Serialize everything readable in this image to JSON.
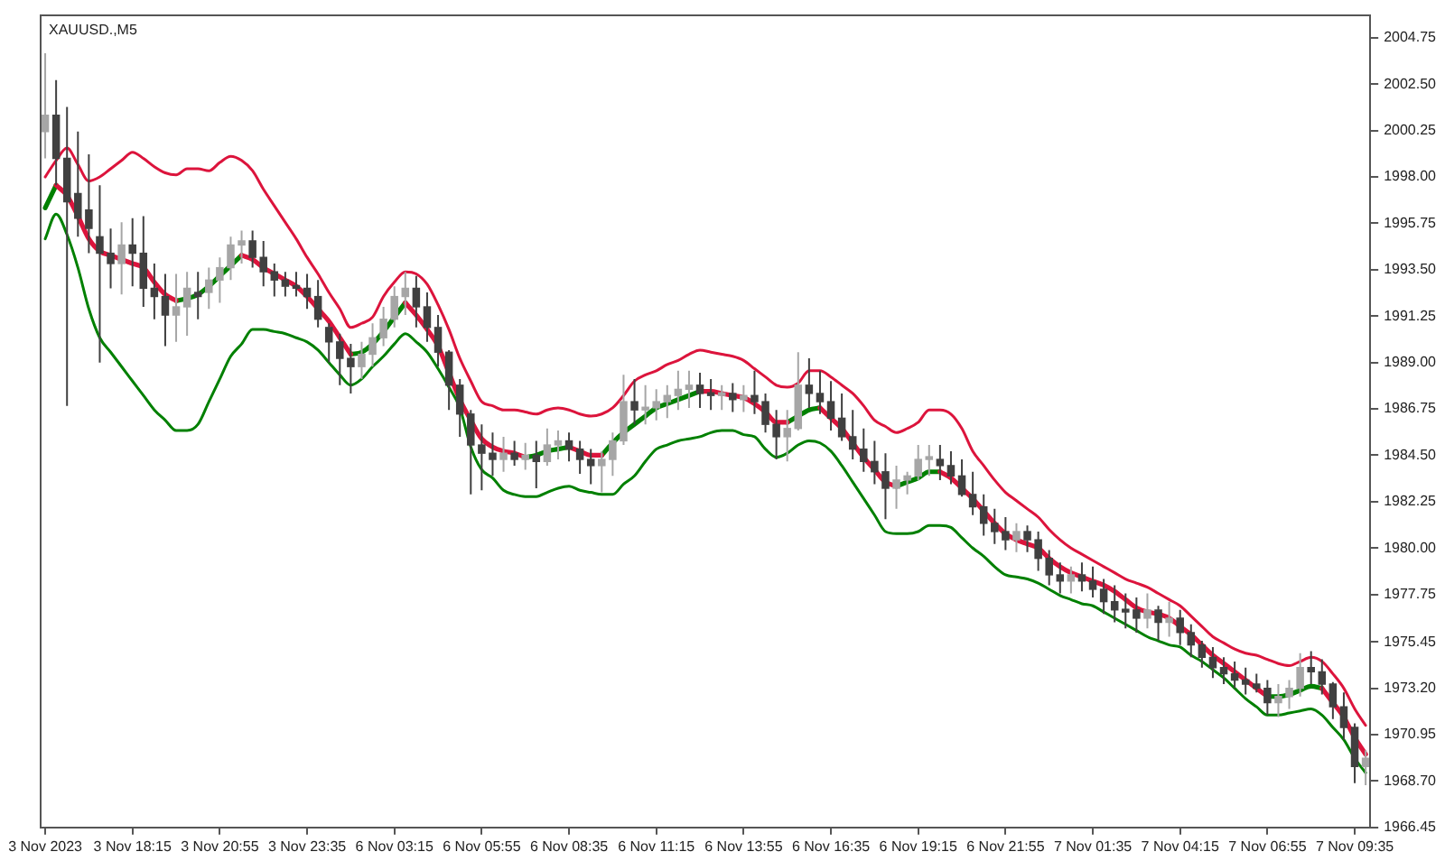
{
  "chart_data": {
    "type": "candlestick",
    "title": "XAUUSD.,M5",
    "marker": "none",
    "categories": [
      "3 Nov 2023",
      null,
      null,
      null,
      null,
      null,
      null,
      null,
      "3 Nov 18:15",
      null,
      null,
      null,
      null,
      null,
      null,
      null,
      "3 Nov 20:55",
      null,
      null,
      null,
      null,
      null,
      null,
      null,
      "3 Nov 23:35",
      null,
      null,
      null,
      null,
      null,
      null,
      null,
      "6 Nov 03:15",
      null,
      null,
      null,
      null,
      null,
      null,
      null,
      "6 Nov 05:55",
      null,
      null,
      null,
      null,
      null,
      null,
      null,
      "6 Nov 08:35",
      null,
      null,
      null,
      null,
      null,
      null,
      null,
      "6 Nov 11:15",
      null,
      null,
      null,
      null,
      null,
      null,
      null,
      "6 Nov 13:55",
      null,
      null,
      null,
      null,
      null,
      null,
      null,
      "6 Nov 16:35",
      null,
      null,
      null,
      null,
      null,
      null,
      null,
      "6 Nov 19:15",
      null,
      null,
      null,
      null,
      null,
      null,
      null,
      "6 Nov 21:55",
      null,
      null,
      null,
      null,
      null,
      null,
      null,
      "7 Nov 01:35",
      null,
      null,
      null,
      null,
      null,
      null,
      null,
      "7 Nov 04:15",
      null,
      null,
      null,
      null,
      null,
      null,
      null,
      "7 Nov 06:55",
      null,
      null,
      null,
      null,
      null,
      null,
      null,
      "7 Nov 09:35",
      null
    ],
    "ylim": [
      1966.45,
      2005.9
    ],
    "yticks": [
      2004.75,
      {
        "value": 2002.5,
        "label": "2002.50"
      },
      2000.25,
      {
        "value": 1998,
        "label": "1998.00"
      },
      1995.75,
      {
        "value": 1993.5,
        "label": "1993.50"
      },
      1991.25,
      {
        "value": 1989,
        "label": "1989.00"
      },
      1986.75,
      {
        "value": 1984.5,
        "label": "1984.50"
      },
      1982.25,
      {
        "value": 1980,
        "label": "1980.00"
      },
      1977.75,
      1975.45,
      {
        "value": 1973.2,
        "label": "1973.20"
      },
      1970.95,
      {
        "value": 1968.7,
        "label": "1968.70"
      },
      1966.45
    ],
    "series": [
      {
        "type": "candlestick",
        "colors": [
          "#a6a6a6",
          "#404040",
          "#404040",
          "#404040",
          "#404040",
          "#404040",
          "#404040",
          "#a6a6a6",
          "#404040",
          "#404040",
          "#404040",
          "#404040",
          "#a6a6a6",
          "#a6a6a6",
          "#404040",
          "#a6a6a6",
          "#a6a6a6",
          "#a6a6a6",
          "#a6a6a6",
          "#404040",
          "#404040",
          "#404040",
          "#404040",
          "#404040",
          "#404040",
          "#404040",
          "#404040",
          "#404040",
          "#404040",
          "#a6a6a6",
          "#a6a6a6",
          "#a6a6a6",
          "#a6a6a6",
          "#a6a6a6",
          "#404040",
          "#404040",
          "#404040",
          "#404040",
          "#404040",
          "#404040",
          "#404040",
          "#404040",
          "#a6a6a6",
          "#404040",
          "#a6a6a6",
          "#404040",
          "#a6a6a6",
          "#a6a6a6",
          "#404040",
          "#404040",
          "#404040",
          "#a6a6a6",
          "#a6a6a6",
          "#a6a6a6",
          "#404040",
          "#a6a6a6",
          "#a6a6a6",
          "#a6a6a6",
          "#a6a6a6",
          "#a6a6a6",
          "#404040",
          "#404040",
          "#a6a6a6",
          "#404040",
          "#a6a6a6",
          "#404040",
          "#404040",
          "#404040",
          "#a6a6a6",
          "#a6a6a6",
          "#404040",
          "#404040",
          "#404040",
          "#404040",
          "#404040",
          "#404040",
          "#404040",
          "#404040",
          "#a6a6a6",
          "#a6a6a6",
          "#a6a6a6",
          "#a6a6a6",
          "#404040",
          "#404040",
          "#404040",
          "#404040",
          "#404040",
          "#404040",
          "#404040",
          "#a6a6a6",
          "#404040",
          "#404040",
          "#404040",
          "#404040",
          "#a6a6a6",
          "#404040",
          "#404040",
          "#404040",
          "#404040",
          "#404040",
          "#404040",
          "#a6a6a6",
          "#404040",
          "#a6a6a6",
          "#404040",
          "#404040",
          "#404040",
          "#404040",
          "#404040",
          "#404040",
          "#404040",
          "#404040",
          "#404040",
          "#a6a6a6",
          "#a6a6a6",
          "#a6a6a6",
          "#404040",
          "#404040",
          "#404040",
          "#404040",
          "#404040",
          "#a6a6a6"
        ],
        "ohlc": [
          [
            2000.2,
            2004.0,
            1998.9,
            2001.0
          ],
          [
            2001.0,
            2002.7,
            1997.6,
            1998.9
          ],
          [
            1998.9,
            2001.4,
            1986.9,
            1996.8
          ],
          [
            1997.2,
            2000.2,
            1995.1,
            1996.0
          ],
          [
            1996.4,
            1999.1,
            1994.3,
            1995.5
          ],
          [
            1995.1,
            1997.6,
            1989.0,
            1994.3
          ],
          [
            1994.3,
            1995.5,
            1992.6,
            1993.8
          ],
          [
            1993.8,
            1995.8,
            1992.3,
            1994.7
          ],
          [
            1994.7,
            1996.0,
            1992.7,
            1994.3
          ],
          [
            1994.3,
            1996.1,
            1991.7,
            1992.6
          ],
          [
            1992.6,
            1993.8,
            1991.1,
            1992.2
          ],
          [
            1992.2,
            1993.3,
            1989.8,
            1991.3
          ],
          [
            1991.3,
            1993.3,
            1990.0,
            1991.7
          ],
          [
            1991.7,
            1993.4,
            1990.3,
            1992.6
          ],
          [
            1992.4,
            1993.4,
            1991.1,
            1992.2
          ],
          [
            1992.4,
            1993.6,
            1991.6,
            1993.0
          ],
          [
            1993.0,
            1994.1,
            1991.9,
            1993.6
          ],
          [
            1993.6,
            1995.1,
            1993.0,
            1994.7
          ],
          [
            1994.7,
            1995.4,
            1993.8,
            1994.9
          ],
          [
            1994.9,
            1995.4,
            1993.6,
            1994.1
          ],
          [
            1994.1,
            1994.9,
            1992.7,
            1993.4
          ],
          [
            1993.4,
            1993.8,
            1992.2,
            1993.0
          ],
          [
            1993.0,
            1993.4,
            1992.2,
            1992.7
          ],
          [
            1992.7,
            1993.4,
            1992.2,
            1992.6
          ],
          [
            1992.6,
            1993.3,
            1991.6,
            1992.2
          ],
          [
            1992.2,
            1993.0,
            1990.7,
            1991.1
          ],
          [
            1990.7,
            1990.9,
            1989.0,
            1990.0
          ],
          [
            1990.0,
            1990.4,
            1987.9,
            1989.2
          ],
          [
            1989.2,
            1989.9,
            1987.5,
            1988.8
          ],
          [
            1988.8,
            1990.0,
            1988.2,
            1989.4
          ],
          [
            1989.4,
            1990.9,
            1988.8,
            1990.2
          ],
          [
            1990.2,
            1991.7,
            1989.8,
            1991.1
          ],
          [
            1991.1,
            1992.7,
            1990.7,
            1992.2
          ],
          [
            1992.2,
            1993.4,
            1991.3,
            1992.6
          ],
          [
            1992.6,
            1993.2,
            1990.7,
            1991.7
          ],
          [
            1991.7,
            1992.4,
            1990.0,
            1990.7
          ],
          [
            1990.7,
            1991.3,
            1988.8,
            1989.5
          ],
          [
            1989.5,
            1989.6,
            1986.7,
            1987.9
          ],
          [
            1987.9,
            1988.2,
            1985.4,
            1986.5
          ],
          [
            1986.5,
            1986.7,
            1982.6,
            1985.0
          ],
          [
            1985.0,
            1986.0,
            1982.8,
            1984.6
          ],
          [
            1984.6,
            1985.6,
            1983.5,
            1984.3
          ],
          [
            1984.3,
            1985.4,
            1983.7,
            1984.6
          ],
          [
            1984.6,
            1985.2,
            1984.0,
            1984.3
          ],
          [
            1984.3,
            1985.1,
            1983.8,
            1984.5
          ],
          [
            1984.5,
            1985.2,
            1982.9,
            1984.2
          ],
          [
            1984.2,
            1985.8,
            1984.0,
            1985.0
          ],
          [
            1985.0,
            1985.7,
            1984.3,
            1985.2
          ],
          [
            1985.2,
            1985.6,
            1984.2,
            1984.8
          ],
          [
            1984.8,
            1985.2,
            1983.6,
            1984.3
          ],
          [
            1984.3,
            1984.8,
            1983.1,
            1984.0
          ],
          [
            1984.0,
            1984.7,
            1982.7,
            1984.3
          ],
          [
            1984.3,
            1985.6,
            1983.5,
            1985.2
          ],
          [
            1985.2,
            1988.4,
            1985.0,
            1987.1
          ],
          [
            1987.1,
            1988.2,
            1986.0,
            1986.7
          ],
          [
            1986.7,
            1987.9,
            1986.0,
            1986.8
          ],
          [
            1986.8,
            1987.7,
            1986.2,
            1987.1
          ],
          [
            1987.1,
            1987.9,
            1986.3,
            1987.4
          ],
          [
            1987.4,
            1988.6,
            1986.7,
            1987.7
          ],
          [
            1987.7,
            1988.6,
            1986.8,
            1987.9
          ],
          [
            1987.9,
            1988.5,
            1986.8,
            1987.5
          ],
          [
            1987.5,
            1988.2,
            1986.7,
            1987.4
          ],
          [
            1987.4,
            1987.9,
            1986.7,
            1987.5
          ],
          [
            1987.5,
            1988.0,
            1986.6,
            1987.2
          ],
          [
            1987.2,
            1987.9,
            1986.6,
            1987.4
          ],
          [
            1987.4,
            1988.6,
            1986.5,
            1987.1
          ],
          [
            1987.1,
            1987.5,
            1985.6,
            1986.0
          ],
          [
            1986.0,
            1986.7,
            1984.3,
            1985.4
          ],
          [
            1985.4,
            1986.7,
            1984.2,
            1985.8
          ],
          [
            1985.8,
            1989.5,
            1985.7,
            1987.9
          ],
          [
            1987.9,
            1989.2,
            1986.8,
            1987.5
          ],
          [
            1987.5,
            1988.6,
            1986.5,
            1987.1
          ],
          [
            1987.1,
            1988.1,
            1985.7,
            1986.3
          ],
          [
            1986.3,
            1987.5,
            1985.2,
            1985.4
          ],
          [
            1985.4,
            1986.7,
            1984.3,
            1984.8
          ],
          [
            1984.8,
            1985.8,
            1983.7,
            1984.2
          ],
          [
            1984.2,
            1985.2,
            1983.1,
            1983.7
          ],
          [
            1983.7,
            1984.6,
            1981.4,
            1982.9
          ],
          [
            1982.9,
            1984.0,
            1981.9,
            1983.3
          ],
          [
            1983.3,
            1983.7,
            1982.6,
            1983.5
          ],
          [
            1983.5,
            1985.0,
            1983.3,
            1984.3
          ],
          [
            1984.3,
            1985.0,
            1983.5,
            1984.4
          ],
          [
            1984.3,
            1985.0,
            1983.3,
            1984.0
          ],
          [
            1984.0,
            1984.7,
            1983.1,
            1983.5
          ],
          [
            1983.5,
            1984.3,
            1982.5,
            1982.6
          ],
          [
            1982.6,
            1983.7,
            1981.6,
            1982.0
          ],
          [
            1982.0,
            1982.6,
            1980.6,
            1981.2
          ],
          [
            1981.2,
            1981.9,
            1980.2,
            1980.8
          ],
          [
            1980.8,
            1981.5,
            1979.9,
            1980.4
          ],
          [
            1980.4,
            1981.2,
            1979.8,
            1980.8
          ],
          [
            1980.8,
            1981.1,
            1979.8,
            1980.4
          ],
          [
            1980.4,
            1980.8,
            1978.9,
            1979.5
          ],
          [
            1979.5,
            1979.9,
            1978.2,
            1978.7
          ],
          [
            1978.7,
            1979.3,
            1977.8,
            1978.4
          ],
          [
            1978.4,
            1979.1,
            1977.8,
            1978.7
          ],
          [
            1978.7,
            1979.3,
            1977.9,
            1978.4
          ],
          [
            1978.4,
            1979.1,
            1977.6,
            1978.0
          ],
          [
            1978.0,
            1978.5,
            1976.8,
            1977.4
          ],
          [
            1977.4,
            1978.2,
            1976.4,
            1977.0
          ],
          [
            1977.0,
            1977.8,
            1976.1,
            1976.9
          ],
          [
            1977.0,
            1977.6,
            1975.9,
            1976.6
          ],
          [
            1976.6,
            1977.8,
            1976.1,
            1977.0
          ],
          [
            1977.0,
            1977.2,
            1975.5,
            1976.4
          ],
          [
            1976.4,
            1977.4,
            1975.7,
            1976.6
          ],
          [
            1976.6,
            1977.0,
            1975.3,
            1975.9
          ],
          [
            1975.9,
            1976.3,
            1974.7,
            1975.3
          ],
          [
            1975.3,
            1975.5,
            1974.2,
            1974.7
          ],
          [
            1974.7,
            1975.2,
            1973.7,
            1974.2
          ],
          [
            1974.2,
            1974.7,
            1973.4,
            1973.9
          ],
          [
            1973.9,
            1974.5,
            1973.2,
            1973.6
          ],
          [
            1973.6,
            1974.2,
            1972.9,
            1973.4
          ],
          [
            1973.4,
            1973.9,
            1973.0,
            1973.2
          ],
          [
            1973.2,
            1973.6,
            1971.9,
            1972.5
          ],
          [
            1972.5,
            1973.4,
            1971.8,
            1972.8
          ],
          [
            1972.8,
            1973.6,
            1972.2,
            1973.2
          ],
          [
            1973.2,
            1974.9,
            1972.8,
            1974.2
          ],
          [
            1974.2,
            1975.0,
            1973.4,
            1974.0
          ],
          [
            1974.0,
            1974.6,
            1972.9,
            1973.4
          ],
          [
            1973.4,
            1973.5,
            1971.7,
            1972.3
          ],
          [
            1972.3,
            1973.0,
            1970.7,
            1971.3
          ],
          [
            1971.3,
            1971.5,
            1968.6,
            1969.4
          ],
          [
            1969.4,
            1970.2,
            1968.5,
            1969.8
          ]
        ]
      },
      {
        "type": "line",
        "color": "#dc143c",
        "values": [
          1998.0,
          1998.8,
          1999.4,
          1998.6,
          1997.8,
          1998.0,
          1998.4,
          1998.8,
          1999.2,
          1998.9,
          1998.5,
          1998.2,
          1998.1,
          1998.4,
          1998.4,
          1998.3,
          1998.7,
          1999.0,
          1998.8,
          1998.3,
          1997.4,
          1996.6,
          1995.8,
          1995.0,
          1994.1,
          1993.3,
          1992.4,
          1991.6,
          1990.7,
          1990.9,
          1991.2,
          1992.2,
          1992.9,
          1993.4,
          1993.3,
          1992.8,
          1991.8,
          1990.6,
          1989.2,
          1988.1,
          1987.1,
          1986.9,
          1986.7,
          1986.7,
          1986.6,
          1986.5,
          1986.7,
          1986.8,
          1986.7,
          1986.5,
          1986.4,
          1986.5,
          1986.8,
          1987.4,
          1988.1,
          1988.4,
          1988.6,
          1988.9,
          1989.1,
          1989.4,
          1989.6,
          1989.5,
          1989.4,
          1989.3,
          1989.1,
          1988.7,
          1988.3,
          1987.9,
          1987.8,
          1988.0,
          1988.6,
          1988.6,
          1988.3,
          1987.9,
          1987.5,
          1986.9,
          1986.2,
          1985.9,
          1985.6,
          1985.8,
          1986.1,
          1986.7,
          1986.7,
          1986.5,
          1985.8,
          1984.7,
          1984.0,
          1983.3,
          1982.7,
          1982.3,
          1981.9,
          1981.5,
          1980.9,
          1980.4,
          1980.0,
          1979.7,
          1979.4,
          1979.1,
          1978.8,
          1978.5,
          1978.3,
          1978.1,
          1977.8,
          1977.5,
          1977.2,
          1976.7,
          1976.2,
          1975.7,
          1975.4,
          1975.1,
          1974.9,
          1974.8,
          1974.6,
          1974.4,
          1974.3,
          1974.5,
          1974.7,
          1974.5,
          1973.9,
          1973.2,
          1972.2,
          1971.4
        ]
      },
      {
        "type": "line",
        "color": "#008000",
        "values": [
          1995.0,
          1996.2,
          1995.2,
          1993.6,
          1991.6,
          1990.2,
          1989.5,
          1988.8,
          1988.1,
          1987.4,
          1986.7,
          1986.2,
          1985.7,
          1985.7,
          1986.0,
          1987.1,
          1988.2,
          1989.3,
          1989.9,
          1990.6,
          1990.6,
          1990.5,
          1990.4,
          1990.2,
          1990.0,
          1989.6,
          1989.0,
          1988.4,
          1987.9,
          1988.2,
          1988.8,
          1989.3,
          1989.9,
          1990.4,
          1990.0,
          1989.5,
          1988.7,
          1987.8,
          1986.8,
          1984.9,
          1983.8,
          1983.4,
          1982.8,
          1982.6,
          1982.5,
          1982.5,
          1982.7,
          1982.9,
          1983.0,
          1982.8,
          1982.7,
          1982.6,
          1982.6,
          1983.1,
          1983.5,
          1984.2,
          1984.8,
          1985.0,
          1985.2,
          1985.3,
          1985.4,
          1985.6,
          1985.7,
          1985.7,
          1985.5,
          1985.4,
          1984.8,
          1984.4,
          1984.6,
          1985.0,
          1985.2,
          1985.1,
          1984.7,
          1984.0,
          1983.2,
          1982.4,
          1981.6,
          1980.8,
          1980.7,
          1980.7,
          1980.8,
          1981.1,
          1981.1,
          1981.0,
          1980.5,
          1980.0,
          1979.6,
          1979.1,
          1978.7,
          1978.6,
          1978.5,
          1978.3,
          1978.0,
          1977.7,
          1977.5,
          1977.3,
          1977.2,
          1976.9,
          1976.6,
          1976.3,
          1976.0,
          1975.7,
          1975.5,
          1975.3,
          1975.2,
          1974.8,
          1974.5,
          1974.1,
          1973.7,
          1973.2,
          1972.7,
          1972.3,
          1971.9,
          1971.9,
          1972.0,
          1972.1,
          1972.2,
          1971.9,
          1971.3,
          1970.7,
          1969.8,
          1969.1
        ]
      },
      {
        "type": "line",
        "color": "#dc143c",
        "values": [
          null,
          1997.6,
          1997.1,
          1996.1,
          1995.0,
          1994.4,
          1994.2,
          1994.0,
          1993.8,
          1993.6,
          1992.9,
          1992.3,
          1992.0,
          null,
          null,
          null,
          null,
          null,
          1994.2,
          1994.0,
          1993.6,
          1993.3,
          1993.0,
          1992.7,
          1992.2,
          1991.6,
          1991.0,
          1990.2,
          1989.4,
          null,
          null,
          null,
          null,
          1991.9,
          1991.3,
          1990.6,
          1989.8,
          1988.5,
          1987.2,
          1986.2,
          1985.3,
          1984.9,
          1984.7,
          1984.6,
          1984.4,
          null,
          null,
          null,
          1984.9,
          1984.7,
          1984.5,
          1984.5,
          null,
          null,
          null,
          null,
          null,
          null,
          null,
          null,
          1987.6,
          1987.6,
          1987.5,
          1987.4,
          1987.3,
          1987.0,
          1986.6,
          1986.1,
          1986.1,
          null,
          null,
          1986.8,
          1986.3,
          1985.8,
          1985.1,
          1984.4,
          1983.8,
          1983.2,
          1983.0,
          null,
          null,
          null,
          1983.7,
          1983.4,
          1982.9,
          1982.4,
          1981.8,
          1981.2,
          1980.7,
          1980.4,
          1980.2,
          1980.0,
          1979.5,
          1979.1,
          1978.8,
          1978.6,
          1978.4,
          1978.2,
          1977.9,
          1977.5,
          1977.1,
          1976.9,
          1976.8,
          1976.6,
          1976.2,
          1975.8,
          1975.3,
          1974.8,
          1974.4,
          1974.0,
          1973.6,
          1973.2,
          1972.8,
          null,
          null,
          null,
          null,
          1973.2,
          1972.5,
          1971.8,
          1970.8,
          1970.0
        ]
      },
      {
        "type": "line",
        "color": "#008000",
        "values": [
          1996.5,
          1997.6,
          null,
          null,
          null,
          null,
          null,
          null,
          null,
          null,
          null,
          null,
          1992.0,
          1992.1,
          1992.3,
          1992.7,
          1993.2,
          1993.7,
          1994.2,
          null,
          null,
          null,
          null,
          null,
          null,
          null,
          null,
          null,
          1989.4,
          1989.5,
          1989.9,
          1990.5,
          1991.2,
          1991.9,
          null,
          null,
          null,
          null,
          null,
          null,
          null,
          null,
          null,
          null,
          1984.4,
          1984.5,
          1984.7,
          1984.8,
          1984.9,
          null,
          null,
          1984.5,
          1985.1,
          1985.6,
          1986.0,
          1986.4,
          1986.8,
          1987.0,
          1987.2,
          1987.4,
          1987.6,
          null,
          null,
          null,
          null,
          null,
          null,
          null,
          1986.1,
          1986.4,
          1986.7,
          1986.8,
          null,
          null,
          null,
          null,
          null,
          null,
          1983.0,
          1983.2,
          1983.4,
          1983.7,
          1983.7,
          null,
          null,
          null,
          null,
          null,
          null,
          null,
          null,
          null,
          null,
          null,
          null,
          null,
          null,
          null,
          null,
          null,
          null,
          null,
          null,
          null,
          null,
          null,
          null,
          null,
          null,
          null,
          null,
          null,
          1972.8,
          1972.8,
          1972.9,
          1973.1,
          1973.3,
          1973.2,
          null,
          null,
          null,
          null
        ]
      }
    ]
  }
}
